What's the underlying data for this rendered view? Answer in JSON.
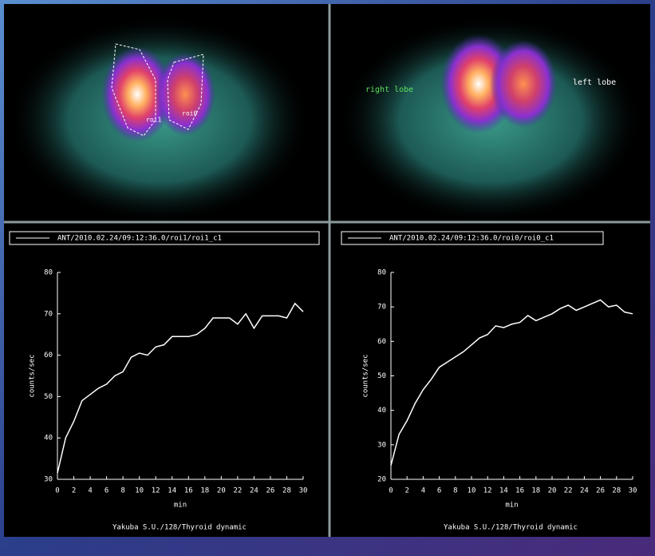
{
  "images": [
    {
      "labels": [
        "roi1",
        "roi0"
      ]
    },
    {
      "labels": [
        "right lobe",
        "left lobe"
      ]
    }
  ],
  "chart_data": [
    {
      "type": "line",
      "x_label": "min",
      "y_label": "counts/sec",
      "caption": "Yakuba S.U./128/Thyroid dynamic",
      "x": [
        0,
        1,
        2,
        3,
        4,
        5,
        6,
        7,
        8,
        9,
        10,
        11,
        12,
        13,
        14,
        15,
        16,
        17,
        18,
        19,
        20,
        21,
        22,
        23,
        24,
        25,
        26,
        27,
        28,
        29,
        30
      ],
      "series": [
        {
          "name": "ANT/2010.02.24/09:12:36.0/roi1/roi1_c1",
          "color": "#ffffff",
          "values": [
            31.5,
            40,
            44,
            49,
            50.5,
            52,
            53,
            55,
            56,
            59.5,
            60.5,
            60,
            62,
            62.5,
            64.5,
            64.5,
            64.5,
            65,
            66.5,
            69,
            69,
            69,
            67.5,
            70,
            66.5,
            69.5,
            69.5,
            69.5,
            69,
            72.5,
            70.5
          ]
        }
      ],
      "xlim": [
        0,
        30
      ],
      "xticks": [
        0,
        2,
        4,
        6,
        8,
        10,
        12,
        14,
        16,
        18,
        20,
        22,
        24,
        26,
        28,
        30
      ],
      "ylim": [
        30,
        80
      ],
      "yticks": [
        30,
        40,
        50,
        60,
        70,
        80
      ]
    },
    {
      "type": "line",
      "x_label": "min",
      "y_label": "counts/sec",
      "caption": "Yakuba S.U./128/Thyroid dynamic",
      "x": [
        0,
        1,
        2,
        3,
        4,
        5,
        6,
        7,
        8,
        9,
        10,
        11,
        12,
        13,
        14,
        15,
        16,
        17,
        18,
        19,
        20,
        21,
        22,
        23,
        24,
        25,
        26,
        27,
        28,
        29,
        30
      ],
      "series": [
        {
          "name": "ANT/2010.02.24/09:12:36.0/roi0/roi0_c1",
          "color": "#ffffff",
          "values": [
            24,
            33,
            37,
            42,
            46,
            49,
            52.5,
            54,
            55.5,
            57,
            59,
            61,
            62,
            64.5,
            64,
            65,
            65.5,
            67.5,
            66,
            67,
            68,
            69.5,
            70.5,
            69,
            70,
            71,
            72,
            70,
            70.5,
            68.5,
            68
          ]
        }
      ],
      "xlim": [
        0,
        30
      ],
      "xticks": [
        0,
        2,
        4,
        6,
        8,
        10,
        12,
        14,
        16,
        18,
        20,
        22,
        24,
        26,
        28,
        30
      ],
      "ylim": [
        20,
        80
      ],
      "yticks": [
        20,
        30,
        40,
        50,
        60,
        70,
        80
      ]
    }
  ]
}
